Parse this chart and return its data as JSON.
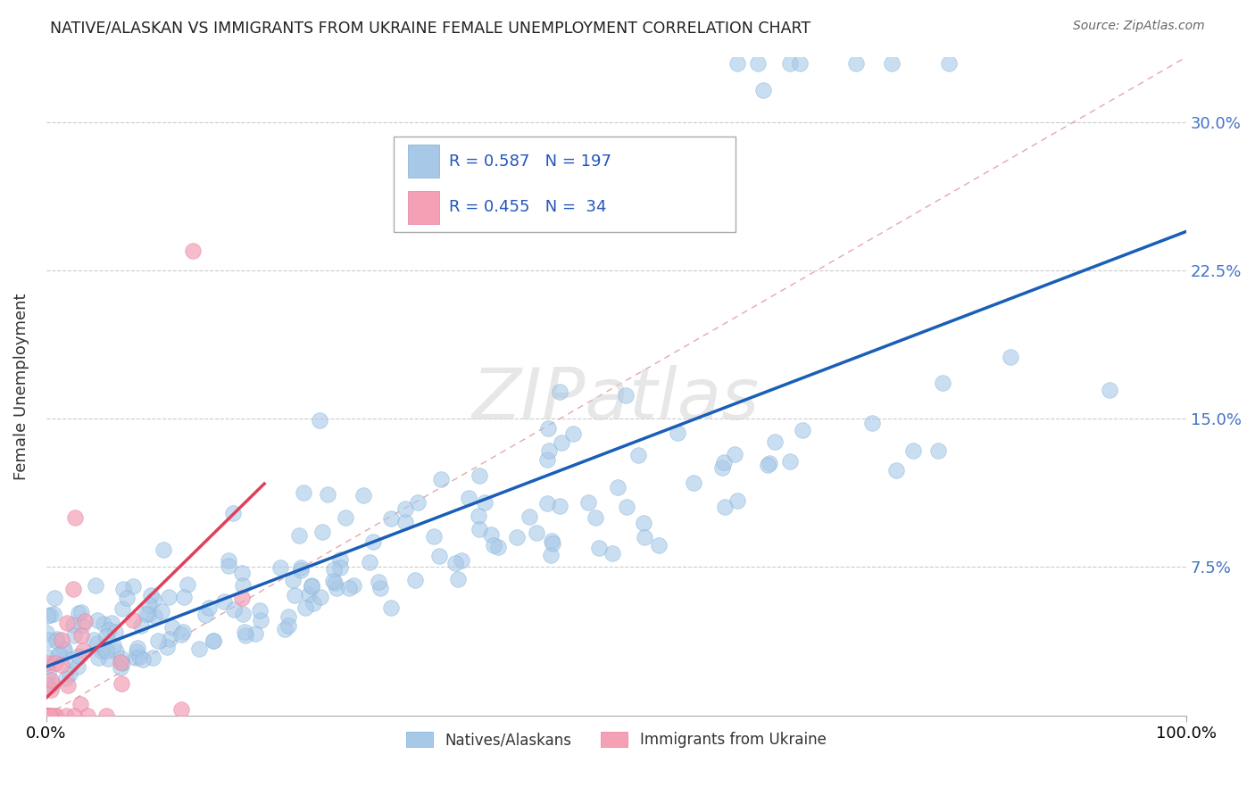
{
  "title": "NATIVE/ALASKAN VS IMMIGRANTS FROM UKRAINE FEMALE UNEMPLOYMENT CORRELATION CHART",
  "source": "Source: ZipAtlas.com",
  "ylabel": "Female Unemployment",
  "xlabel": "",
  "xlim": [
    0,
    1
  ],
  "ylim": [
    0,
    0.333
  ],
  "yticks": [
    0.075,
    0.15,
    0.225,
    0.3
  ],
  "ytick_labels": [
    "7.5%",
    "15.0%",
    "22.5%",
    "30.0%"
  ],
  "xticks": [
    0.0,
    1.0
  ],
  "xtick_labels": [
    "0.0%",
    "100.0%"
  ],
  "blue_color": "#a8c8e8",
  "pink_color": "#f4a0b5",
  "blue_line_color": "#1a5eb8",
  "pink_line_color": "#e0405a",
  "diag_color": "#e0909a",
  "blue_R": 0.587,
  "blue_N": 197,
  "pink_R": 0.455,
  "pink_N": 34,
  "legend_label_blue": "Natives/Alaskans",
  "legend_label_pink": "Immigrants from Ukraine",
  "watermark": "ZIPatlas",
  "background_color": "#ffffff",
  "grid_color": "#cccccc",
  "seed_blue": 42,
  "seed_pink": 7
}
